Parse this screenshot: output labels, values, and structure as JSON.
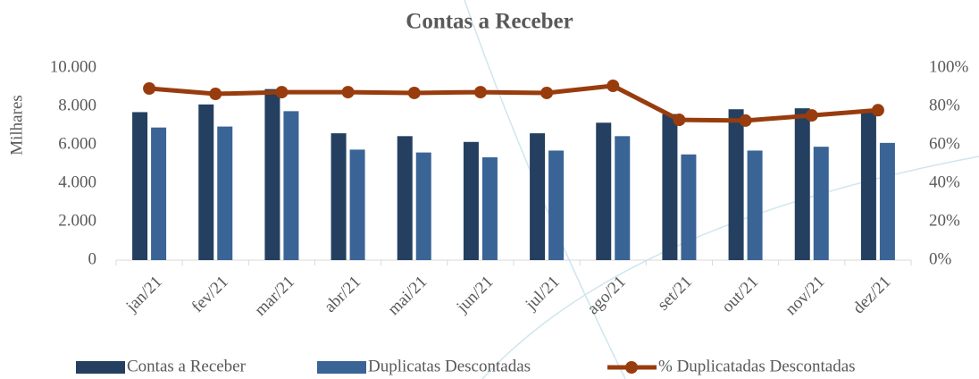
{
  "chart_data": {
    "type": "bar-line",
    "title": "Contas a Receber",
    "ylabel": "Milhares",
    "categories": [
      "jan/21",
      "fev/21",
      "mar/21",
      "abr/21",
      "mai/21",
      "jun/21",
      "jul/21",
      "ago/21",
      "set/21",
      "out/21",
      "nov/21",
      "dez/21"
    ],
    "series": [
      {
        "name": "Contas a Receber",
        "color": "#243f60",
        "type": "bar",
        "values": [
          7700,
          8100,
          8900,
          6600,
          6450,
          6150,
          6600,
          7150,
          7600,
          7850,
          7900,
          7700
        ]
      },
      {
        "name": "Duplicatas Descontadas",
        "color": "#3a6496",
        "type": "bar",
        "values": [
          6900,
          6950,
          7750,
          5750,
          5600,
          5350,
          5700,
          6450,
          5500,
          5700,
          5900,
          6100
        ]
      },
      {
        "name": "% Duplicatadas Descontadas",
        "color": "#983c0e",
        "type": "line",
        "axis": "y2",
        "values": [
          89.3,
          86.5,
          87.4,
          87.4,
          87,
          87.4,
          87,
          90.7,
          73,
          72.6,
          75.3,
          78
        ]
      }
    ],
    "ylim": [
      0,
      10000
    ],
    "yticks": [
      0,
      {
        "value": 2000,
        "label": "2.000"
      },
      {
        "value": 4000,
        "label": "4.000"
      },
      {
        "value": 6000,
        "label": "6.000"
      },
      {
        "value": 8000,
        "label": "8.000"
      },
      {
        "value": 10000,
        "label": "10.000"
      }
    ],
    "y2lim": [
      0,
      100
    ],
    "y2ticks": [
      {
        "value": 0,
        "label": "0%"
      },
      {
        "value": 20,
        "label": "20%"
      },
      {
        "value": 40,
        "label": "40%"
      },
      {
        "value": 60,
        "label": "60%"
      },
      {
        "value": 80,
        "label": "80%"
      },
      {
        "value": 100,
        "label": "100%"
      }
    ],
    "legend": "bottom"
  }
}
